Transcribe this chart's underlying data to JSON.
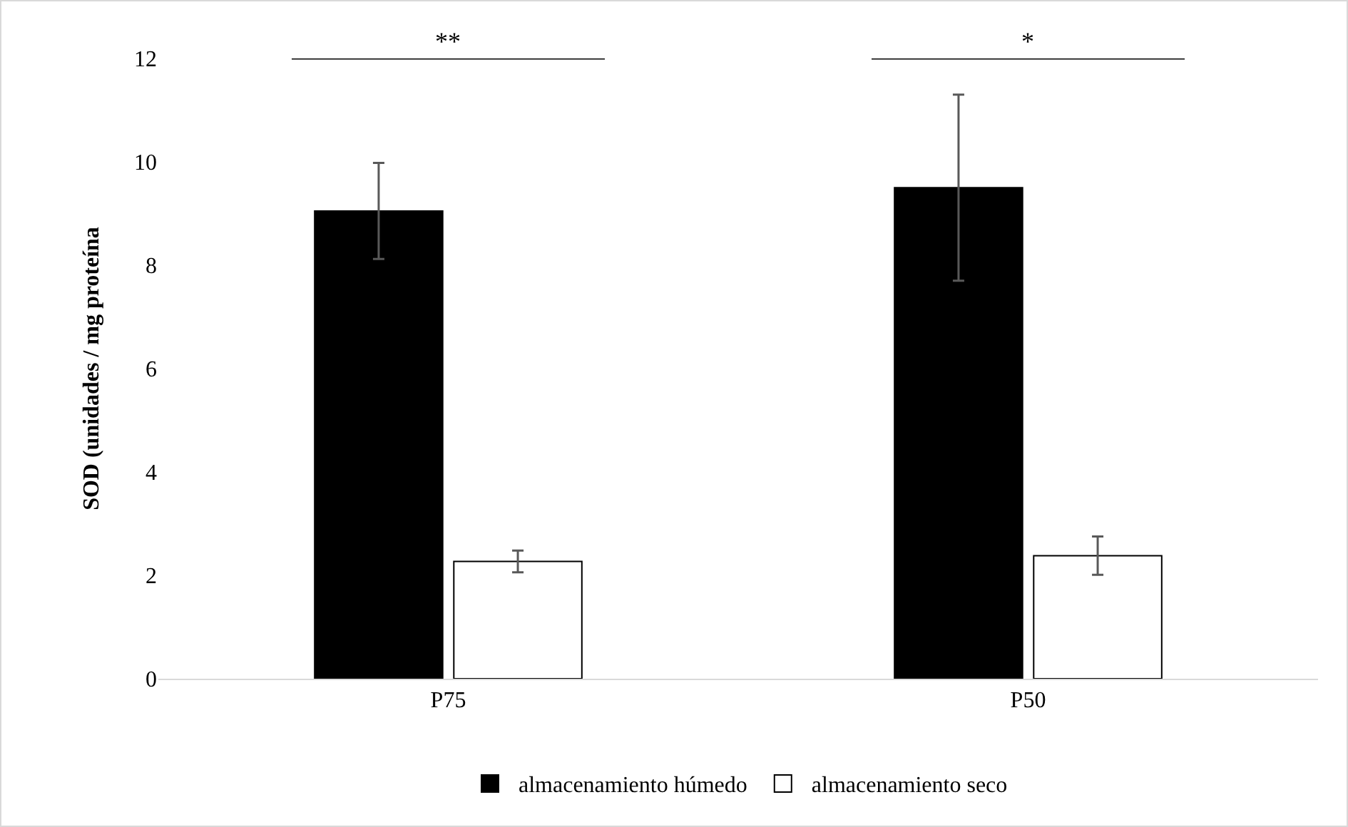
{
  "chart_data": {
    "type": "bar",
    "ylabel": "SOD (unidades / mg proteína",
    "categories": [
      "P75",
      "P50"
    ],
    "series": [
      {
        "name": "almacenamiento húmedo",
        "color": "#000000",
        "values": [
          9.05,
          9.5
        ],
        "errors": [
          0.93,
          1.8
        ]
      },
      {
        "name": "almacenamiento seco",
        "color": "#ffffff",
        "values": [
          2.27,
          2.38
        ],
        "errors": [
          0.21,
          0.37
        ]
      }
    ],
    "ylim": [
      0,
      12
    ],
    "yticks": [
      0,
      2,
      4,
      6,
      8,
      10,
      12
    ],
    "grid": false,
    "legend": "bottom",
    "annotations": [
      "**",
      "*"
    ]
  }
}
